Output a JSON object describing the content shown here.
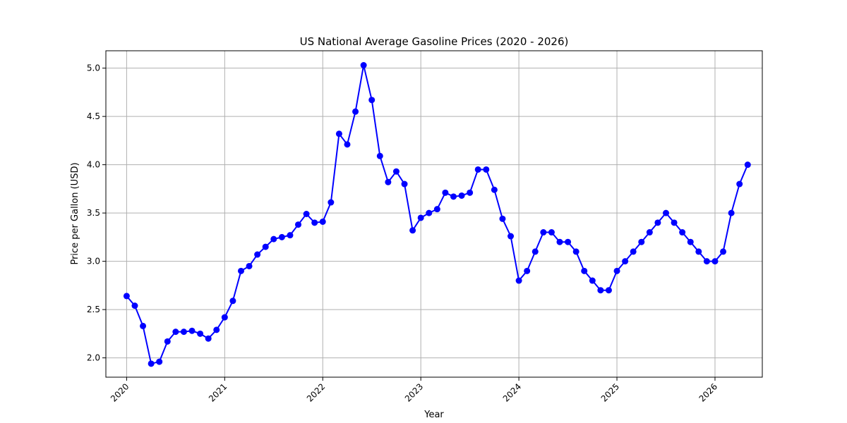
{
  "chart_data": {
    "type": "line",
    "title": "US National Average Gasoline Prices (2020 - 2026)",
    "xlabel": "Year",
    "ylabel": "Price per Gallon (USD)",
    "xlim": [
      "2019-10-15",
      "2026-06-25"
    ],
    "ylim": [
      1.8,
      5.18
    ],
    "grid": true,
    "x_ticks": [
      "2020",
      "2021",
      "2022",
      "2023",
      "2024",
      "2025",
      "2026"
    ],
    "y_ticks": [
      "2.0",
      "2.5",
      "3.0",
      "3.5",
      "4.0",
      "4.5",
      "5.0"
    ],
    "colors": {
      "line": "#0000ff",
      "marker": "#0000ff",
      "grid": "#b0b0b0"
    },
    "series": [
      {
        "x": [
          "2020-01",
          "2020-02",
          "2020-03",
          "2020-04",
          "2020-05",
          "2020-06",
          "2020-07",
          "2020-08",
          "2020-09",
          "2020-10",
          "2020-11",
          "2020-12",
          "2021-01",
          "2021-02",
          "2021-03",
          "2021-04",
          "2021-05",
          "2021-06",
          "2021-07",
          "2021-08",
          "2021-09",
          "2021-10",
          "2021-11",
          "2021-12",
          "2022-01",
          "2022-02",
          "2022-03",
          "2022-04",
          "2022-05",
          "2022-06",
          "2022-07",
          "2022-08",
          "2022-09",
          "2022-10",
          "2022-11",
          "2022-12",
          "2023-01",
          "2023-02",
          "2023-03",
          "2023-04",
          "2023-05",
          "2023-06",
          "2023-07",
          "2023-08",
          "2023-09",
          "2023-10",
          "2023-11",
          "2023-12",
          "2024-01",
          "2024-02",
          "2024-03",
          "2024-04",
          "2024-05",
          "2024-06",
          "2024-07",
          "2024-08",
          "2024-09",
          "2024-10",
          "2024-11",
          "2024-12",
          "2025-01",
          "2025-02",
          "2025-03",
          "2025-04",
          "2025-05",
          "2025-06",
          "2025-07",
          "2025-08",
          "2025-09",
          "2025-10",
          "2025-11",
          "2025-12",
          "2026-01",
          "2026-02",
          "2026-03",
          "2026-04",
          "2026-05"
        ],
        "values": [
          2.64,
          2.54,
          2.33,
          1.94,
          1.96,
          2.17,
          2.27,
          2.27,
          2.28,
          2.25,
          2.2,
          2.29,
          2.42,
          2.59,
          2.9,
          2.95,
          3.07,
          3.15,
          3.23,
          3.25,
          3.27,
          3.38,
          3.49,
          3.4,
          3.41,
          3.61,
          4.32,
          4.21,
          4.55,
          5.03,
          4.67,
          4.09,
          3.82,
          3.93,
          3.8,
          3.32,
          3.45,
          3.5,
          3.54,
          3.71,
          3.67,
          3.68,
          3.71,
          3.95,
          3.95,
          3.74,
          3.44,
          3.26,
          2.8,
          2.9,
          3.1,
          3.3,
          3.3,
          3.2,
          3.2,
          3.1,
          2.9,
          2.8,
          2.7,
          2.7,
          2.9,
          3.0,
          3.1,
          3.2,
          3.3,
          3.4,
          3.5,
          3.4,
          3.3,
          3.2,
          3.1,
          3.0,
          3.0,
          3.1,
          3.5,
          3.8,
          4.0
        ]
      }
    ]
  }
}
